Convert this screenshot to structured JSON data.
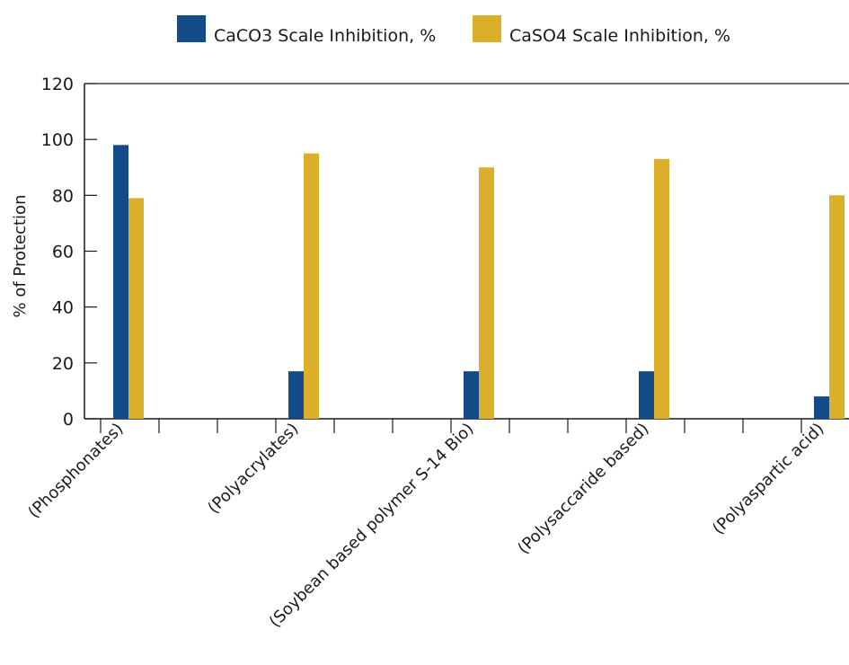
{
  "chart_data": {
    "type": "bar",
    "title": "",
    "xlabel": "",
    "ylabel": "% of Protection",
    "ylim": [
      0,
      120
    ],
    "yticks": [
      "0",
      "20",
      "40",
      "60",
      "80",
      "100",
      "120"
    ],
    "grid": false,
    "legend_position": "top",
    "categories": [
      "(Phosphonates)",
      "(Polyacrylates)",
      "(Soybean based polymer S-14 Bio)",
      "(Polysaccaride based)",
      "(Polyaspartic acid)"
    ],
    "series": [
      {
        "name": "CaCO3 Scale Inhibition, %",
        "color": "#134a88",
        "values": [
          98,
          17,
          17,
          17,
          8
        ]
      },
      {
        "name": "CaSO4 Scale Inhibition, %",
        "color": "#dcaf2a",
        "values": [
          79,
          95,
          90,
          93,
          80
        ]
      }
    ]
  }
}
